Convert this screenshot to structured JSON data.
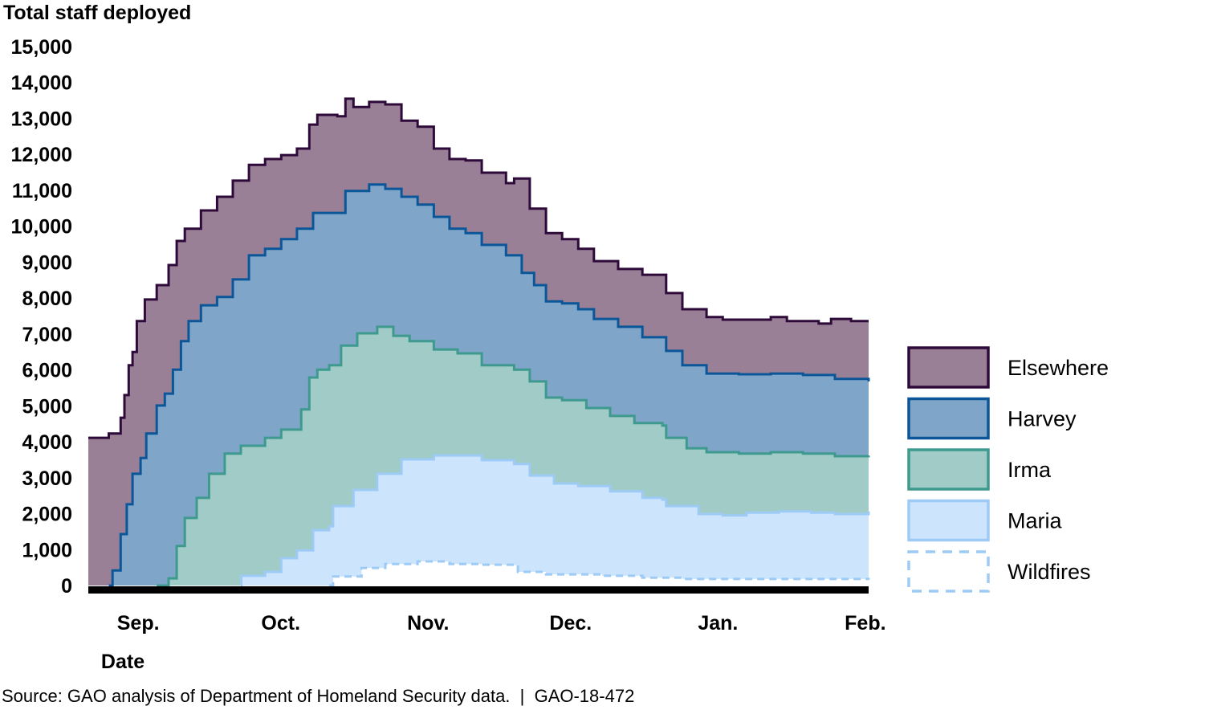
{
  "chart_data": {
    "type": "area",
    "stacked": true,
    "step": true,
    "title": "Total staff deployed",
    "xlabel": "Date",
    "ylabel": "Total staff deployed",
    "x_units": "days since Sep. 1",
    "xlim": [
      -10.5,
      153.7
    ],
    "ylim": [
      0,
      15000
    ],
    "y_ticks": [
      0,
      1000,
      2000,
      3000,
      4000,
      5000,
      6000,
      7000,
      8000,
      9000,
      10000,
      11000,
      12000,
      13000,
      14000,
      15000
    ],
    "y_tick_labels": [
      "0",
      "1,000",
      "2,000",
      "3,000",
      "4,000",
      "5,000",
      "6,000",
      "7,000",
      "8,000",
      "9,000",
      "10,000",
      "11,000",
      "12,000",
      "13,000",
      "14,000",
      "15,000"
    ],
    "x_ticks": [
      0,
      30,
      61,
      91,
      122,
      153
    ],
    "x_tick_labels": [
      "Sep.",
      "Oct.",
      "Nov.",
      "Dec.",
      "Jan.",
      "Feb."
    ],
    "grid": false,
    "legend_position": "right",
    "value_note": "points are [day, cumulative stacked top]",
    "series": [
      {
        "name": "Elsewhere",
        "fill": "#9a8096",
        "line": "#2e0a3a",
        "dashed": false,
        "points": [
          [
            -10.5,
            4110
          ],
          [
            -6.2,
            4230
          ],
          [
            -3.7,
            4670
          ],
          [
            -2.9,
            5300
          ],
          [
            -2.0,
            6130
          ],
          [
            -1.2,
            6500
          ],
          [
            -0.3,
            7360
          ],
          [
            1.4,
            7960
          ],
          [
            3.9,
            8360
          ],
          [
            6.4,
            8920
          ],
          [
            8.1,
            9590
          ],
          [
            9.8,
            9930
          ],
          [
            13.2,
            10440
          ],
          [
            16.6,
            10820
          ],
          [
            19.9,
            11270
          ],
          [
            23.3,
            11710
          ],
          [
            26.7,
            11870
          ],
          [
            30.1,
            11980
          ],
          [
            33.4,
            12160
          ],
          [
            36.0,
            12830
          ],
          [
            37.7,
            13100
          ],
          [
            41.9,
            13060
          ],
          [
            43.6,
            13550
          ],
          [
            45.3,
            13320
          ],
          [
            48.6,
            13460
          ],
          [
            52.0,
            13390
          ],
          [
            55.4,
            12940
          ],
          [
            58.8,
            12770
          ],
          [
            62.2,
            12160
          ],
          [
            65.5,
            11870
          ],
          [
            68.9,
            11830
          ],
          [
            72.3,
            11490
          ],
          [
            77.4,
            11200
          ],
          [
            79.1,
            11330
          ],
          [
            82.4,
            10490
          ],
          [
            85.8,
            9810
          ],
          [
            89.2,
            9640
          ],
          [
            92.6,
            9370
          ],
          [
            95.9,
            9030
          ],
          [
            101.0,
            8810
          ],
          [
            106.1,
            8650
          ],
          [
            111.1,
            8140
          ],
          [
            114.5,
            7690
          ],
          [
            119.6,
            7470
          ],
          [
            123.0,
            7400
          ],
          [
            128.0,
            7400
          ],
          [
            133.1,
            7470
          ],
          [
            136.5,
            7360
          ],
          [
            143.2,
            7290
          ],
          [
            145.8,
            7420
          ],
          [
            150.0,
            7360
          ],
          [
            153.7,
            7360
          ]
        ]
      },
      {
        "name": "Harvey",
        "fill": "#7fa6c8",
        "line": "#0b5698",
        "dashed": false,
        "points": [
          [
            -6.2,
            0
          ],
          [
            -5.4,
            420
          ],
          [
            -3.7,
            1430
          ],
          [
            -2.4,
            2260
          ],
          [
            -1.2,
            3110
          ],
          [
            0.5,
            3550
          ],
          [
            1.7,
            4230
          ],
          [
            3.9,
            5010
          ],
          [
            5.6,
            5340
          ],
          [
            7.3,
            6010
          ],
          [
            9.0,
            6800
          ],
          [
            10.6,
            7360
          ],
          [
            13.2,
            7800
          ],
          [
            16.6,
            8030
          ],
          [
            19.9,
            8520
          ],
          [
            23.3,
            9190
          ],
          [
            26.7,
            9370
          ],
          [
            30.1,
            9640
          ],
          [
            33.4,
            9930
          ],
          [
            36.8,
            10370
          ],
          [
            40.2,
            10370
          ],
          [
            43.6,
            10980
          ],
          [
            48.6,
            11160
          ],
          [
            52.0,
            11040
          ],
          [
            55.4,
            10820
          ],
          [
            58.8,
            10600
          ],
          [
            62.2,
            10260
          ],
          [
            65.5,
            9930
          ],
          [
            68.9,
            9810
          ],
          [
            72.3,
            9480
          ],
          [
            77.4,
            9190
          ],
          [
            80.7,
            8700
          ],
          [
            83.3,
            8360
          ],
          [
            85.8,
            7910
          ],
          [
            89.2,
            7850
          ],
          [
            92.6,
            7690
          ],
          [
            95.9,
            7420
          ],
          [
            101.0,
            7200
          ],
          [
            106.1,
            6910
          ],
          [
            111.1,
            6530
          ],
          [
            114.5,
            6130
          ],
          [
            119.6,
            5900
          ],
          [
            126.4,
            5880
          ],
          [
            133.1,
            5900
          ],
          [
            139.9,
            5860
          ],
          [
            146.6,
            5750
          ],
          [
            153.7,
            5680
          ]
        ]
      },
      {
        "name": "Irma",
        "fill": "#a1cbc6",
        "line": "#3e998f",
        "dashed": false,
        "points": [
          [
            3.9,
            0
          ],
          [
            6.4,
            200
          ],
          [
            8.1,
            1100
          ],
          [
            9.8,
            1880
          ],
          [
            12.3,
            2440
          ],
          [
            14.9,
            3110
          ],
          [
            18.2,
            3670
          ],
          [
            21.6,
            3890
          ],
          [
            26.7,
            4110
          ],
          [
            30.1,
            4340
          ],
          [
            34.3,
            4900
          ],
          [
            36.0,
            5790
          ],
          [
            37.7,
            6010
          ],
          [
            40.2,
            6130
          ],
          [
            42.7,
            6680
          ],
          [
            46.1,
            7020
          ],
          [
            50.3,
            7200
          ],
          [
            53.7,
            6950
          ],
          [
            57.1,
            6800
          ],
          [
            62.2,
            6570
          ],
          [
            67.2,
            6460
          ],
          [
            72.3,
            6130
          ],
          [
            79.1,
            6010
          ],
          [
            82.4,
            5680
          ],
          [
            85.8,
            5230
          ],
          [
            89.2,
            5160
          ],
          [
            94.3,
            4940
          ],
          [
            99.3,
            4720
          ],
          [
            104.4,
            4520
          ],
          [
            110.3,
            4450
          ],
          [
            111.1,
            4110
          ],
          [
            115.4,
            3820
          ],
          [
            119.6,
            3710
          ],
          [
            126.4,
            3670
          ],
          [
            133.1,
            3710
          ],
          [
            139.9,
            3670
          ],
          [
            146.6,
            3600
          ],
          [
            153.7,
            3620
          ]
        ]
      },
      {
        "name": "Maria",
        "fill": "#cce4fc",
        "line": "#9dcbf6",
        "dashed": false,
        "points": [
          [
            21.6,
            0
          ],
          [
            21.7,
            270
          ],
          [
            26.7,
            380
          ],
          [
            30.1,
            760
          ],
          [
            33.4,
            980
          ],
          [
            36.8,
            1540
          ],
          [
            40.2,
            1650
          ],
          [
            41.0,
            2210
          ],
          [
            45.3,
            2660
          ],
          [
            50.3,
            3110
          ],
          [
            55.4,
            3510
          ],
          [
            62.2,
            3620
          ],
          [
            67.2,
            3620
          ],
          [
            72.3,
            3490
          ],
          [
            79.1,
            3380
          ],
          [
            82.4,
            3060
          ],
          [
            87.5,
            2840
          ],
          [
            92.6,
            2770
          ],
          [
            99.3,
            2620
          ],
          [
            106.1,
            2440
          ],
          [
            110.3,
            2390
          ],
          [
            111.1,
            2210
          ],
          [
            117.9,
            1990
          ],
          [
            123.0,
            1950
          ],
          [
            128.0,
            2030
          ],
          [
            134.8,
            2060
          ],
          [
            141.6,
            2030
          ],
          [
            146.6,
            1990
          ],
          [
            153.7,
            2060
          ]
        ]
      },
      {
        "name": "Wildfires",
        "fill": "#ffffff",
        "line": "#9dcbf6",
        "dashed": true,
        "points": [
          [
            40.2,
            0
          ],
          [
            41.0,
            250
          ],
          [
            47.0,
            490
          ],
          [
            52.0,
            600
          ],
          [
            58.8,
            670
          ],
          [
            65.5,
            600
          ],
          [
            72.3,
            580
          ],
          [
            79.1,
            560
          ],
          [
            79.9,
            380
          ],
          [
            85.8,
            310
          ],
          [
            97.6,
            270
          ],
          [
            106.1,
            220
          ],
          [
            114.5,
            180
          ],
          [
            131.4,
            180
          ],
          [
            153.7,
            160
          ]
        ]
      }
    ]
  },
  "source": "Source: GAO analysis of Department of Homeland Security data.  |  GAO-18-472"
}
